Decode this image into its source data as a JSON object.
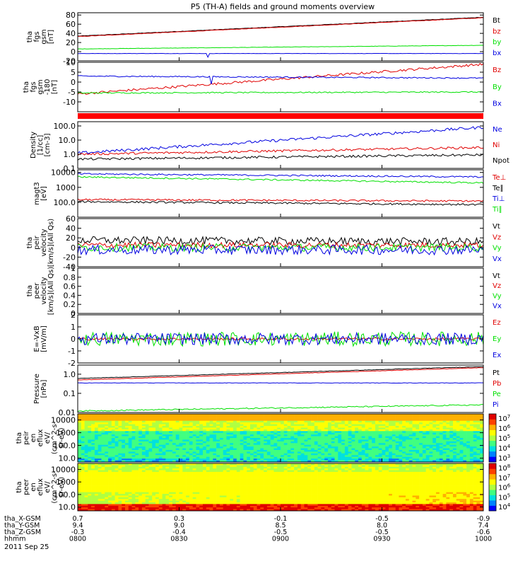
{
  "title": "P5 (TH-A) fields and ground moments overview",
  "date_label": "2011 Sep 25",
  "colors": {
    "black": "#000000",
    "red": "#e00000",
    "green": "#00e000",
    "blue": "#0000e0"
  },
  "chart_data": [
    {
      "id": "fgs",
      "type": "line",
      "ylabel": [
        "tha",
        "fgs",
        "gsm",
        "[nT]"
      ],
      "ylim": [
        -20,
        85
      ],
      "yticks": [
        -20,
        0,
        20,
        40,
        60,
        80
      ],
      "series": [
        {
          "name": "Bt",
          "color": "black",
          "start": 34,
          "end": 75,
          "noise": 0.5
        },
        {
          "name": "bz",
          "color": "red",
          "start": 33,
          "end": 74,
          "noise": 0.5
        },
        {
          "name": "by",
          "color": "green",
          "start": 6,
          "end": 14,
          "noise": 0.4
        },
        {
          "name": "bx",
          "color": "blue",
          "start": -4,
          "end": -4,
          "noise": 0.3,
          "spike": {
            "t": 0.32,
            "v": -12
          }
        }
      ]
    },
    {
      "id": "fgs_dsl",
      "type": "line",
      "ylabel": [
        "tha",
        "fgs",
        "gsm",
        "-180",
        "[nT]"
      ],
      "ylim": [
        -15,
        10
      ],
      "yticks": [
        -10,
        -5,
        0,
        5,
        10
      ],
      "series": [
        {
          "name": "Bz",
          "color": "red",
          "start": -6,
          "end": 9,
          "noise": 0.6
        },
        {
          "name": "By",
          "color": "green",
          "start": -5.5,
          "end": -5,
          "noise": 0.3
        },
        {
          "name": "Bx",
          "color": "blue",
          "start": 3,
          "end": 2,
          "noise": 0.3,
          "spike": {
            "t": 0.33,
            "v": -1
          }
        }
      ]
    },
    {
      "id": "density",
      "type": "line",
      "yscale": "log",
      "ylabel": [
        "Density",
        "[1/cc]",
        "[cm-3]"
      ],
      "ylim": [
        0.1,
        200
      ],
      "yticks": [
        0.1,
        1.0,
        10.0,
        100.0
      ],
      "series": [
        {
          "name": "Ne",
          "color": "blue",
          "start": 1.2,
          "end": 80,
          "noise": 0.1
        },
        {
          "name": "Ni",
          "color": "red",
          "start": 1.0,
          "end": 3,
          "noise": 0.08
        },
        {
          "name": "Npot",
          "color": "black",
          "start": 0.45,
          "end": 0.9,
          "noise": 0.08
        }
      ]
    },
    {
      "id": "temperature",
      "type": "line",
      "yscale": "log",
      "ylabel": [
        "magt3",
        "[eV]"
      ],
      "ylim": [
        10,
        15000
      ],
      "yticks": [
        100,
        1000,
        10000
      ],
      "series": [
        {
          "name": "Te⊥",
          "color": "red",
          "start": 150,
          "end": 120,
          "noise": 0.06
        },
        {
          "name": "Te∥",
          "color": "black",
          "start": 110,
          "end": 70,
          "noise": 0.06
        },
        {
          "name": "Ti⊥",
          "color": "blue",
          "start": 8000,
          "end": 5000,
          "noise": 0.05
        },
        {
          "name": "Ti∥",
          "color": "green",
          "start": 5000,
          "end": 2000,
          "noise": 0.05
        }
      ]
    },
    {
      "id": "peir_velocity",
      "type": "line",
      "ylabel": [
        "tha",
        "peir",
        "velocity",
        "[km/s](All Qs)"
      ],
      "ylim": [
        -40,
        60
      ],
      "yticks": [
        -40,
        -20,
        0,
        20,
        40,
        60
      ],
      "series": [
        {
          "name": "Vt",
          "color": "black",
          "start": 15,
          "end": 12,
          "noise": 8
        },
        {
          "name": "Vz",
          "color": "red",
          "start": 5,
          "end": 5,
          "noise": 6
        },
        {
          "name": "Vy",
          "color": "green",
          "start": 0,
          "end": 0,
          "noise": 8
        },
        {
          "name": "Vx",
          "color": "blue",
          "start": -5,
          "end": -5,
          "noise": 10
        }
      ]
    },
    {
      "id": "peer_velocity",
      "type": "line",
      "ylabel": [
        "tha",
        "peer",
        "velocity",
        "[km/s](All Qs)"
      ],
      "ylim": [
        0,
        1
      ],
      "yticks": [
        0.0,
        0.2,
        0.4,
        0.6,
        0.8,
        1.0
      ],
      "series": [
        {
          "name": "Vt",
          "color": "black",
          "empty": true
        },
        {
          "name": "Vz",
          "color": "red",
          "empty": true
        },
        {
          "name": "Vy",
          "color": "green",
          "empty": true
        },
        {
          "name": "Vx",
          "color": "blue",
          "empty": true
        }
      ]
    },
    {
      "id": "efield",
      "type": "line",
      "ylabel": [
        "E=-VxB",
        "[mV/m]"
      ],
      "ylim": [
        -2,
        2
      ],
      "yticks": [
        -2,
        -1,
        0,
        1,
        2
      ],
      "series": [
        {
          "name": "Ez",
          "color": "red",
          "start": 0,
          "end": 0,
          "noise": 0.1
        },
        {
          "name": "Ey",
          "color": "green",
          "start": 0,
          "end": 0,
          "noise": 0.6
        },
        {
          "name": "Ex",
          "color": "blue",
          "start": 0,
          "end": 0,
          "noise": 0.5
        }
      ]
    },
    {
      "id": "pressure",
      "type": "line",
      "yscale": "log",
      "ylabel": [
        "Pressure",
        "[nPa]"
      ],
      "ylim": [
        0.01,
        3
      ],
      "yticks": [
        0.01,
        0.1,
        1.0
      ],
      "series": [
        {
          "name": "Pt",
          "color": "black",
          "start": 0.6,
          "end": 2.5,
          "noise": 0.01
        },
        {
          "name": "Pb",
          "color": "red",
          "start": 0.5,
          "end": 2.2,
          "noise": 0.01
        },
        {
          "name": "Pe",
          "color": "green",
          "start": 0.012,
          "end": 0.025,
          "noise": 0.03
        },
        {
          "name": "Pi",
          "color": "blue",
          "start": 0.35,
          "end": 0.35,
          "noise": 0.01
        }
      ]
    },
    {
      "id": "peir_en_eflux",
      "type": "heatmap",
      "ylabel": [
        "tha",
        "peir",
        "en",
        "eflux",
        "eV/",
        "(cm^2-s-",
        "sr-eV)"
      ],
      "ylim": [
        5,
        30000
      ],
      "yticks": [
        10,
        100,
        1000,
        10000
      ],
      "colorbar_ticks": [
        "10^3",
        "10^4",
        "10^5",
        "10^6",
        "10^7"
      ]
    },
    {
      "id": "peer_en_eflux",
      "type": "heatmap",
      "ylabel": [
        "tha",
        "peer",
        "en",
        "eflux",
        "eV/",
        "(cm^2-s-",
        "sr-eV)"
      ],
      "ylim": [
        5,
        30000
      ],
      "yticks": [
        10,
        100,
        1000,
        10000
      ],
      "colorbar_ticks": [
        "10^4",
        "10^5",
        "10^6",
        "10^7",
        "10^8"
      ]
    }
  ],
  "x_axis": {
    "rows": [
      {
        "label": "tha_X-GSM",
        "values": [
          "0.7",
          "0.3",
          "-0.1",
          "-0.5",
          "-0.9"
        ]
      },
      {
        "label": "tha_Y-GSM",
        "values": [
          "9.4",
          "9.0",
          "8.5",
          "8.0",
          "7.4"
        ]
      },
      {
        "label": "tha_Z-GSM",
        "values": [
          "-0.3",
          "-0.4",
          "-0.5",
          "-0.5",
          "-0.6"
        ]
      },
      {
        "label": "hhmm",
        "values": [
          "0800",
          "0830",
          "0900",
          "0930",
          "1000"
        ]
      }
    ]
  }
}
